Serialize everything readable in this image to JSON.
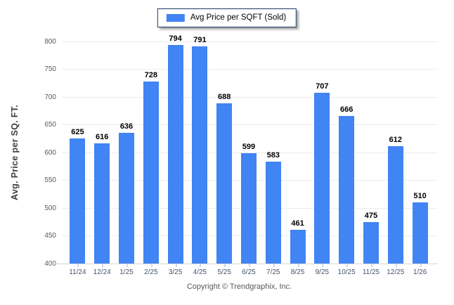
{
  "legend": {
    "label": "Avg Price per SQFT (Sold)"
  },
  "footer": {
    "copyright": "Copyright © Trendgraphix, Inc."
  },
  "colors": {
    "bar": "#4184F3",
    "legend_border": "#1F3864",
    "gridline": "#ECECEC",
    "axis_line": "#D6D6D6",
    "ytick_text": "#595959",
    "xlabel_text": "#44546A",
    "value_text": "#000000",
    "ytitle_text": "#3F3F3F",
    "tick_mark": "#CBD8EF",
    "copyright_text": "#595959"
  },
  "chart_data": {
    "type": "bar",
    "title": "Avg Price per SQFT (Sold)",
    "ylabel": "Avg. Price per SQ. FT.",
    "xlabel": "",
    "categories": [
      "11/24",
      "12/24",
      "1/25",
      "2/25",
      "3/25",
      "4/25",
      "5/25",
      "6/25",
      "7/25",
      "8/25",
      "9/25",
      "10/25",
      "11/25",
      "12/25",
      "1/26"
    ],
    "values": [
      625,
      616,
      636,
      728,
      794,
      791,
      688,
      599,
      583,
      461,
      707,
      666,
      475,
      612,
      510
    ],
    "ylim": [
      400,
      800
    ],
    "yticks": [
      400,
      450,
      500,
      550,
      600,
      650,
      700,
      750,
      800
    ],
    "grid": true,
    "legend_position": "top"
  }
}
